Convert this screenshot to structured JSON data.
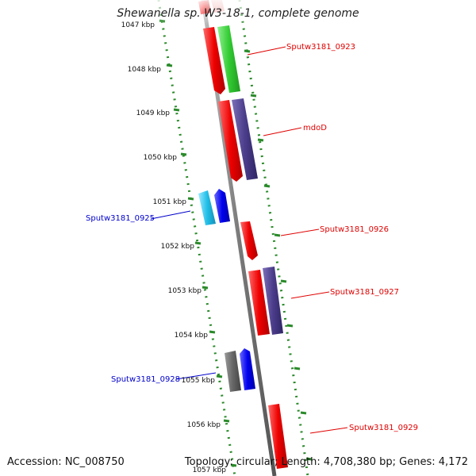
{
  "title": "Shewanella sp. W3-18-1, complete genome",
  "footer": {
    "accession": "Accession: NC_008750",
    "summary": "Topology: circular; Length: 4,708,380 bp; Genes: 4,172"
  },
  "ticks": [
    {
      "label": "1047 kbp",
      "kbp": 1047
    },
    {
      "label": "1048 kbp",
      "kbp": 1048
    },
    {
      "label": "1049 kbp",
      "kbp": 1049
    },
    {
      "label": "1050 kbp",
      "kbp": 1050
    },
    {
      "label": "1051 kbp",
      "kbp": 1051
    },
    {
      "label": "1052 kbp",
      "kbp": 1052
    },
    {
      "label": "1053 kbp",
      "kbp": 1053
    },
    {
      "label": "1054 kbp",
      "kbp": 1054
    },
    {
      "label": "1055 kbp",
      "kbp": 1055
    },
    {
      "label": "1056 kbp",
      "kbp": 1056
    },
    {
      "label": "1057 kbp",
      "kbp": 1057
    }
  ],
  "gene_labels": [
    {
      "text": "Sputw3181_0923",
      "strand": "forward",
      "color": "#e00000"
    },
    {
      "text": "mdoD",
      "strand": "forward",
      "color": "#e00000"
    },
    {
      "text": "Sputw3181_0925",
      "strand": "reverse",
      "color": "#0000cc"
    },
    {
      "text": "Sputw3181_0926",
      "strand": "forward",
      "color": "#e00000"
    },
    {
      "text": "Sputw3181_0927",
      "strand": "forward",
      "color": "#e00000"
    },
    {
      "text": "Sputw3181_0928",
      "strand": "reverse",
      "color": "#0000cc"
    },
    {
      "text": "Sputw3181_0929",
      "strand": "forward",
      "color": "#e00000"
    }
  ],
  "colors": {
    "backbone": "#8a8a8a",
    "dotted_track": "#2a8a2a",
    "forward_cds": "#e00000",
    "reverse_cds": "#0000ee",
    "forward_annotation": "#4b3d8a",
    "rna": "#3ccf3c",
    "reverse_annotation": "#22bfe8",
    "other": "#666666"
  }
}
